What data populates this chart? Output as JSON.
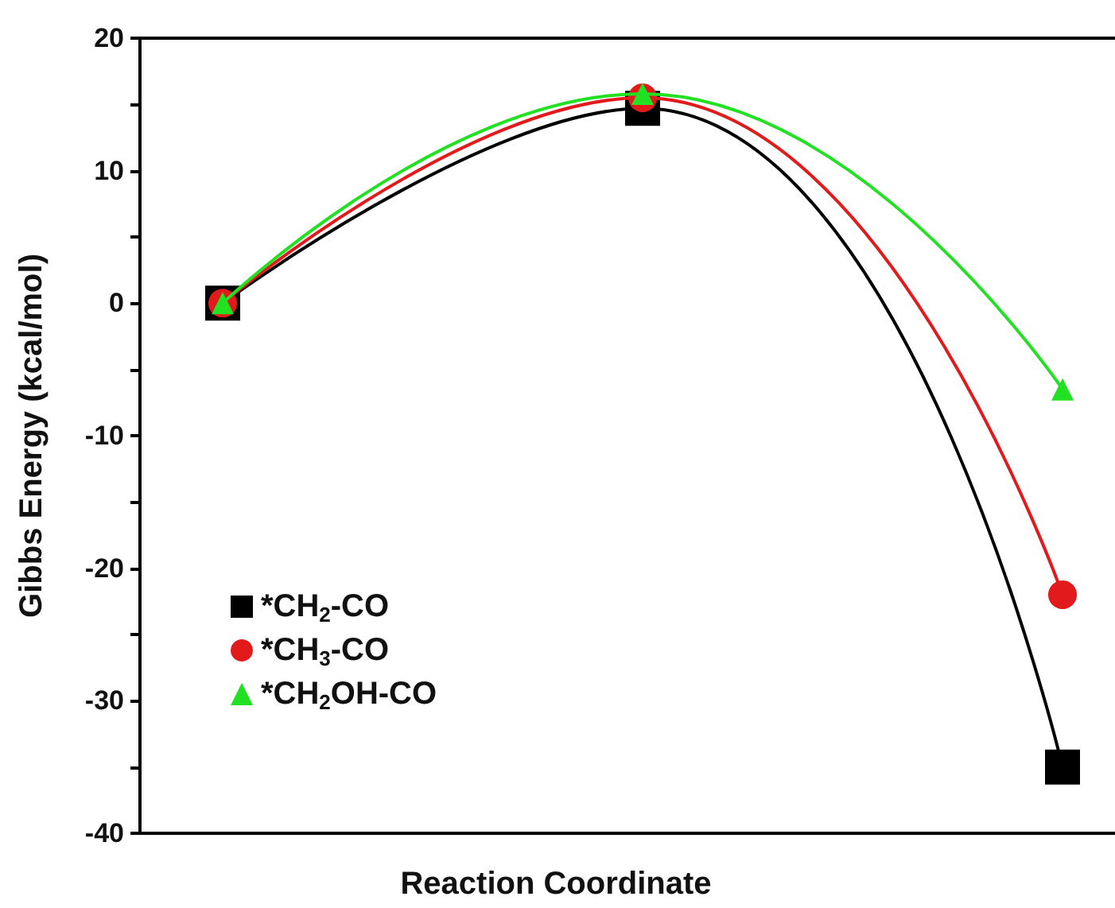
{
  "chart_data": {
    "type": "line",
    "xlabel": "Reaction Coordinate",
    "ylabel": "Gibbs Energy (kcal/mol)",
    "categories": [
      null,
      null,
      null
    ],
    "ylim": [
      -40,
      20
    ],
    "yticks": [
      -40,
      {
        "value": -35,
        "label": null
      },
      -30,
      {
        "value": -25,
        "label": null
      },
      -20,
      {
        "value": -15,
        "label": null
      },
      -10,
      {
        "value": -5,
        "label": null
      },
      0,
      {
        "value": 5,
        "label": null
      },
      10,
      {
        "value": 15,
        "label": null
      },
      20
    ],
    "series": [
      {
        "name": "*CH$_{2}$-CO",
        "color": "#000000",
        "marker": "square",
        "values": [
          0,
          14.7,
          -35
        ]
      },
      {
        "name": "*CH$_{3}$-CO",
        "color": "#e31a1c",
        "marker": "circle",
        "values": [
          0,
          15.5,
          -22
        ]
      },
      {
        "name": "*CH$_{2}$OH-CO",
        "color": "#22e022",
        "marker": "triangle",
        "values": [
          0,
          15.8,
          -6.5
        ]
      }
    ],
    "legend": "bottom left",
    "grid": false,
    "line_style": "solid"
  }
}
